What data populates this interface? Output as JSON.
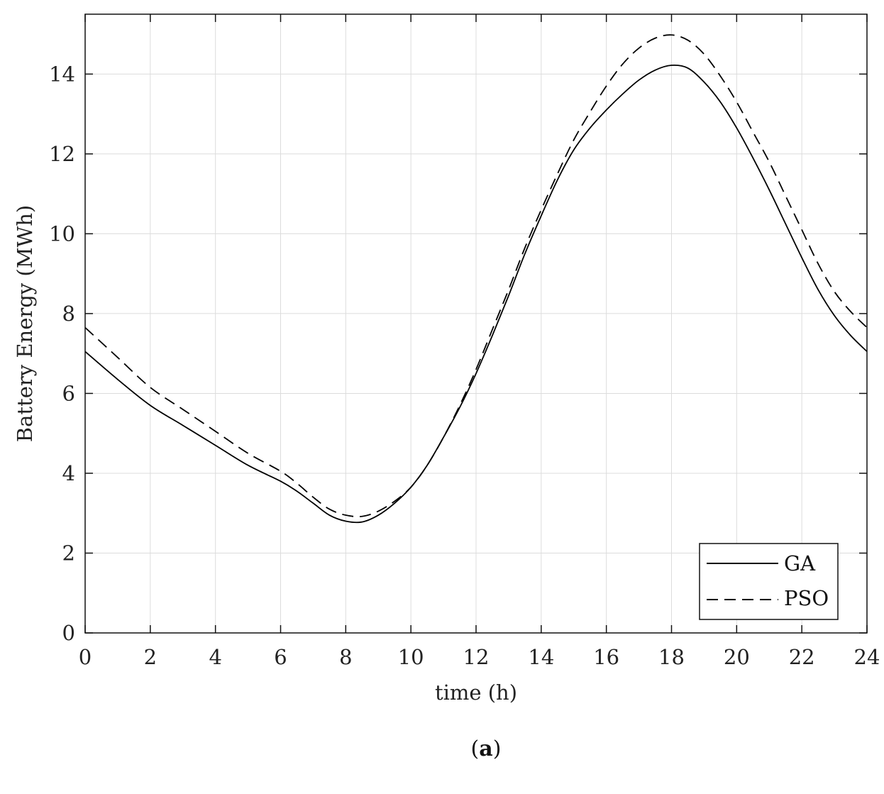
{
  "chart_data": {
    "type": "line",
    "title": "",
    "xlabel": "time (h)",
    "ylabel": "Battery Energy (MWh)",
    "xlim": [
      0,
      24
    ],
    "ylim": [
      0,
      15.5
    ],
    "xticks": [
      0,
      2,
      4,
      6,
      8,
      10,
      12,
      14,
      16,
      18,
      20,
      22,
      24
    ],
    "yticks": [
      0,
      2,
      4,
      6,
      8,
      10,
      12,
      14
    ],
    "grid": true,
    "legend": "bottom-right",
    "series": [
      {
        "name": "GA",
        "style": "solid",
        "color": "#000000",
        "x": [
          0,
          1,
          2,
          3,
          4,
          5,
          6,
          6.5,
          7,
          7.5,
          8,
          8.5,
          9,
          9.5,
          10,
          10.5,
          11,
          11.5,
          12,
          12.5,
          13,
          13.5,
          14,
          14.5,
          15,
          15.5,
          16,
          16.5,
          17,
          17.5,
          18,
          18.5,
          19,
          19.5,
          20,
          20.5,
          21,
          21.5,
          22,
          22.5,
          23,
          23.5,
          24
        ],
        "y": [
          7.05,
          6.35,
          5.7,
          5.2,
          4.7,
          4.2,
          3.8,
          3.55,
          3.25,
          2.95,
          2.8,
          2.78,
          2.95,
          3.25,
          3.65,
          4.2,
          4.9,
          5.65,
          6.5,
          7.45,
          8.45,
          9.5,
          10.45,
          11.35,
          12.1,
          12.65,
          13.1,
          13.5,
          13.85,
          14.1,
          14.22,
          14.15,
          13.8,
          13.3,
          12.65,
          11.9,
          11.1,
          10.25,
          9.4,
          8.6,
          7.95,
          7.45,
          7.05
        ]
      },
      {
        "name": "PSO",
        "style": "dashed",
        "color": "#000000",
        "x": [
          0,
          1,
          2,
          3,
          4,
          5,
          6,
          6.5,
          7,
          7.5,
          8,
          8.5,
          9,
          9.5,
          10,
          10.5,
          11,
          11.5,
          12,
          12.5,
          13,
          13.5,
          14,
          14.5,
          15,
          15.5,
          16,
          16.5,
          17,
          17.5,
          18,
          18.5,
          19,
          19.5,
          20,
          20.5,
          21,
          21.5,
          22,
          22.5,
          23,
          23.5,
          24
        ],
        "y": [
          7.65,
          6.9,
          6.15,
          5.6,
          5.05,
          4.5,
          4.05,
          3.75,
          3.4,
          3.1,
          2.95,
          2.92,
          3.05,
          3.3,
          3.65,
          4.2,
          4.9,
          5.7,
          6.6,
          7.6,
          8.6,
          9.65,
          10.6,
          11.5,
          12.35,
          13.05,
          13.7,
          14.25,
          14.65,
          14.9,
          14.98,
          14.85,
          14.5,
          13.95,
          13.3,
          12.55,
          11.8,
          10.95,
          10.1,
          9.25,
          8.55,
          8.05,
          7.65
        ]
      }
    ]
  },
  "caption": {
    "open": "(",
    "label": "a",
    "close": ")"
  }
}
